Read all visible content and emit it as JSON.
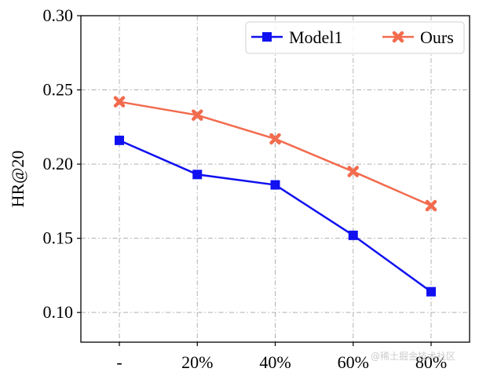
{
  "chart_data": {
    "type": "line",
    "categories": [
      "-",
      "20%",
      "40%",
      "60%",
      "80%"
    ],
    "series": [
      {
        "name": "Model1",
        "values": [
          0.216,
          0.193,
          0.186,
          0.152,
          0.114
        ],
        "color": "#1010f0",
        "marker": "square"
      },
      {
        "name": "Ours",
        "values": [
          0.242,
          0.233,
          0.217,
          0.195,
          0.172
        ],
        "color": "#f26b4e",
        "marker": "x"
      }
    ],
    "xlabel": "",
    "ylabel": "HR@20",
    "ylim": [
      0.08,
      0.3
    ],
    "yticks": [
      "0.10",
      "0.15",
      "0.20",
      "0.25",
      "0.30"
    ],
    "grid": true,
    "legend_position": "top-right"
  },
  "watermark": "@稀土掘金技术社区"
}
